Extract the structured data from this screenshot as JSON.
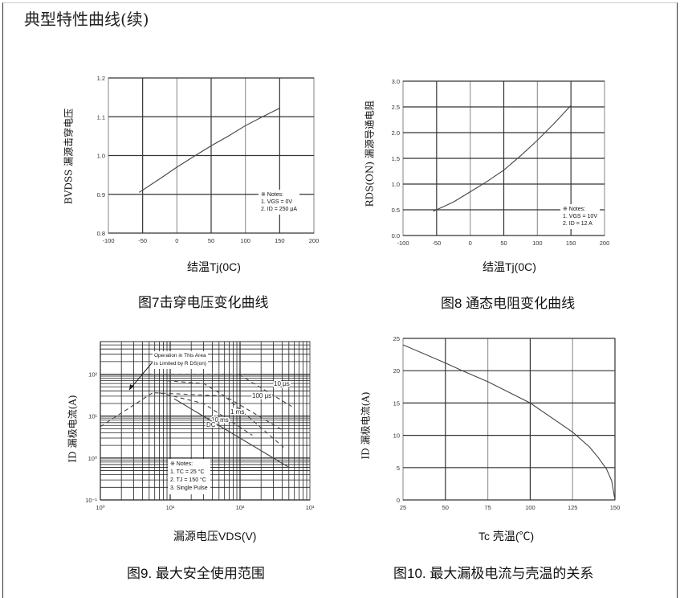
{
  "page_title": "典型特性曲线(续)",
  "chart_data": [
    {
      "type": "line",
      "caption": "图7击穿电压变化曲线",
      "ylabel": "BVDSS 漏源击穿电压",
      "xlabel": "结温Tj(0C)",
      "xlim": [
        -100,
        200
      ],
      "ylim": [
        0.8,
        1.2
      ],
      "xticks": [
        -100,
        -50,
        0,
        50,
        100,
        150,
        200
      ],
      "xtick_labels": [
        "-100",
        "-50",
        "0",
        "50",
        "100",
        "150",
        "200"
      ],
      "yticks": [
        0.8,
        0.9,
        1.0,
        1.1,
        1.2
      ],
      "ytick_labels": [
        "0.8",
        "0.9",
        "1.0",
        "1.1",
        "1.2"
      ],
      "grid": true,
      "notes": [
        "※ Notes:",
        "1. VGS = 0V",
        "2. ID = 250 μA"
      ],
      "series": [
        {
          "x": [
            -55,
            -25,
            0,
            25,
            50,
            75,
            100,
            125,
            150
          ],
          "y": [
            0.905,
            0.94,
            0.97,
            0.998,
            1.025,
            1.05,
            1.077,
            1.1,
            1.122
          ]
        }
      ]
    },
    {
      "type": "line",
      "caption": "图8 通态电阻变化曲线",
      "ylabel": "RDS(ON) 漏源导通电阻",
      "xlabel": "结温Tj(0C)",
      "xlim": [
        -100,
        200
      ],
      "ylim": [
        0.0,
        3.0
      ],
      "xticks": [
        -100,
        -50,
        0,
        50,
        100,
        150,
        200
      ],
      "xtick_labels": [
        "-100",
        "-50",
        "0",
        "50",
        "100",
        "150",
        "200"
      ],
      "yticks": [
        0,
        0.5,
        1.0,
        1.5,
        2.0,
        2.5,
        3.0
      ],
      "ytick_labels": [
        "0.0",
        "0.5",
        "1.0",
        "1.5",
        "2.0",
        "2.5",
        "3.0"
      ],
      "grid": true,
      "notes": [
        "※ Notes:",
        "1. VGS = 10V",
        "2. ID = 12 A"
      ],
      "series": [
        {
          "x": [
            -55,
            -25,
            0,
            25,
            50,
            75,
            100,
            125,
            150
          ],
          "y": [
            0.47,
            0.65,
            0.85,
            1.05,
            1.27,
            1.55,
            1.85,
            2.18,
            2.53
          ]
        }
      ]
    },
    {
      "type": "line",
      "caption": "图9. 最大安全使用范围",
      "ylabel": "ID 漏极电流(A)",
      "xlabel": "漏源电压VDS(V)",
      "xscale": "log",
      "yscale": "log",
      "xlim": [
        1,
        1000
      ],
      "ylim": [
        0.1,
        600
      ],
      "xticks": [
        1,
        10,
        100,
        1000
      ],
      "xtick_labels": [
        "10⁰",
        "10¹",
        "10²",
        "10³"
      ],
      "yticks": [
        0.1,
        1,
        10,
        100
      ],
      "ytick_labels": [
        "10⁻¹",
        "10⁰",
        "10¹",
        "10²"
      ],
      "grid": true,
      "annotation": [
        "Operation in This Area",
        "is Limited by R DS(on)"
      ],
      "notes": [
        "※ Notes:",
        "1. TC = 25 °C",
        "2. TJ = 150 °C",
        "3. Single Pulse"
      ],
      "series": [
        {
          "x": [
            1,
            5.6
          ],
          "y": [
            5.6,
            36
          ],
          "style": "dashed"
        },
        {
          "x": [
            5.6,
            95,
            550
          ],
          "y": [
            100,
            100,
            17
          ],
          "name": "10 μs",
          "style": "dashed"
        },
        {
          "x": [
            9,
            30,
            420
          ],
          "y": [
            70,
            60,
            4.5
          ],
          "name": "100 μs",
          "style": "dashed"
        },
        {
          "x": [
            6,
            60,
            420
          ],
          "y": [
            36,
            30,
            1.8
          ],
          "name": "1 ms",
          "style": "dashed"
        },
        {
          "x": [
            7,
            30,
            150
          ],
          "y": [
            36,
            20,
            3.5
          ],
          "name": "10 ms",
          "style": "dashed"
        },
        {
          "x": [
            11.4,
            500
          ],
          "y": [
            26,
            0.6
          ],
          "name": "DC",
          "style": "solid"
        }
      ]
    },
    {
      "type": "line",
      "caption": "图10. 最大漏极电流与壳温的关系",
      "ylabel": "ID 漏极电流(A)",
      "xlabel": "Tc 壳温(℃)",
      "xlim": [
        25,
        150
      ],
      "ylim": [
        0,
        25
      ],
      "xticks": [
        25,
        50,
        75,
        100,
        125,
        150
      ],
      "xtick_labels": [
        "25",
        "50",
        "75",
        "100",
        "125",
        "150"
      ],
      "yticks": [
        0,
        5,
        10,
        15,
        20,
        25
      ],
      "ytick_labels": [
        "0",
        "5",
        "10",
        "15",
        "20",
        "25"
      ],
      "grid": true,
      "series": [
        {
          "x": [
            25,
            50,
            60,
            75,
            100,
            125,
            135,
            140,
            145,
            148,
            150
          ],
          "y": [
            24,
            21.2,
            20,
            18.3,
            15,
            10.5,
            8.2,
            6.6,
            4.8,
            3.0,
            0
          ]
        }
      ]
    }
  ]
}
